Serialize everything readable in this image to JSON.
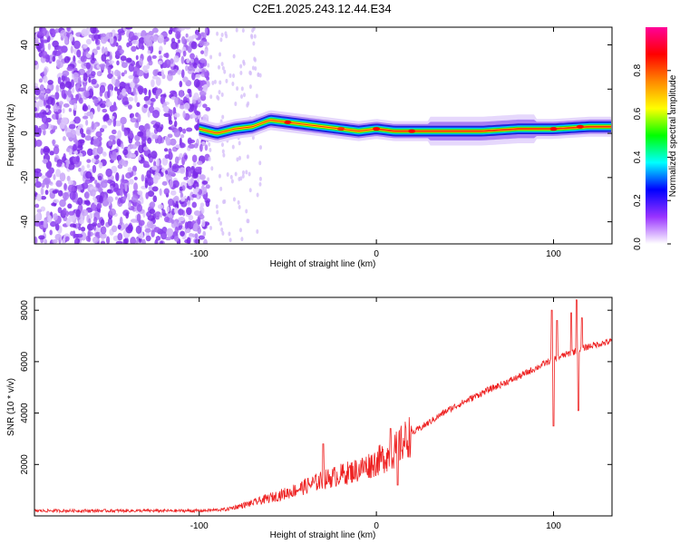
{
  "title": "C2E1.2025.243.12.44.E34",
  "chart_data": [
    {
      "type": "heatmap",
      "name": "spectrogram",
      "xlabel": "Height of straight line (km)",
      "ylabel": "Frequency (Hz)",
      "xlim": [
        -193,
        133
      ],
      "ylim": [
        -50,
        48
      ],
      "xticks": [
        -100,
        0,
        100
      ],
      "xtick_labels": [
        "-100",
        "0",
        "100"
      ],
      "yticks": [
        -40,
        -20,
        0,
        20,
        40
      ],
      "ytick_labels": [
        "-40",
        "-20",
        "0",
        "20",
        "40"
      ],
      "ridge_frequency_hz": {
        "x": [
          -100,
          -90,
          -80,
          -70,
          -60,
          -50,
          -40,
          -30,
          -20,
          -10,
          0,
          10,
          20,
          40,
          60,
          80,
          100,
          120,
          133
        ],
        "y": [
          2,
          0,
          2,
          3,
          6,
          5,
          4,
          3,
          2,
          1,
          2,
          1,
          1,
          1,
          1,
          2,
          2,
          3,
          3
        ]
      },
      "colorbar": {
        "label": "Normalized spectral amplitude",
        "range": [
          0,
          1
        ],
        "ticks": [
          0.0,
          0.2,
          0.4,
          0.6,
          0.8
        ],
        "tick_labels": [
          "0.0",
          "0.2",
          "0.4",
          "0.6",
          "0.8"
        ],
        "colors": [
          "#ffffff",
          "#9933ff",
          "#0000ff",
          "#00ffff",
          "#00ff00",
          "#ffff00",
          "#ff8800",
          "#ff0000",
          "#ff0099"
        ]
      }
    },
    {
      "type": "line",
      "name": "snr",
      "xlabel": "Height of straight line (km)",
      "ylabel": "SNR (10 * v/v)",
      "xlim": [
        -193,
        133
      ],
      "ylim": [
        0,
        8500
      ],
      "xticks": [
        -100,
        0,
        100
      ],
      "xtick_labels": [
        "-100",
        "0",
        "100"
      ],
      "yticks": [
        2000,
        4000,
        6000,
        8000
      ],
      "ytick_labels": [
        "2000",
        "4000",
        "6000",
        "8000"
      ],
      "color": "#ee2222",
      "trend": {
        "x": [
          -193,
          -100,
          -85,
          -70,
          -50,
          -30,
          -10,
          0,
          10,
          20,
          40,
          60,
          80,
          100,
          120,
          133
        ],
        "y": [
          200,
          200,
          250,
          500,
          900,
          1400,
          1800,
          2100,
          2500,
          3200,
          4100,
          4800,
          5400,
          6100,
          6600,
          6800
        ]
      },
      "spikes": [
        {
          "x": 99,
          "y": 8000
        },
        {
          "x": 100,
          "y": 3500
        },
        {
          "x": 102,
          "y": 7600
        },
        {
          "x": 110,
          "y": 7900
        },
        {
          "x": 113,
          "y": 8400
        },
        {
          "x": 114,
          "y": 4100
        },
        {
          "x": 116,
          "y": 7700
        },
        {
          "x": -30,
          "y": 2800
        },
        {
          "x": 8,
          "y": 3400
        },
        {
          "x": 12,
          "y": 1200
        }
      ]
    }
  ]
}
